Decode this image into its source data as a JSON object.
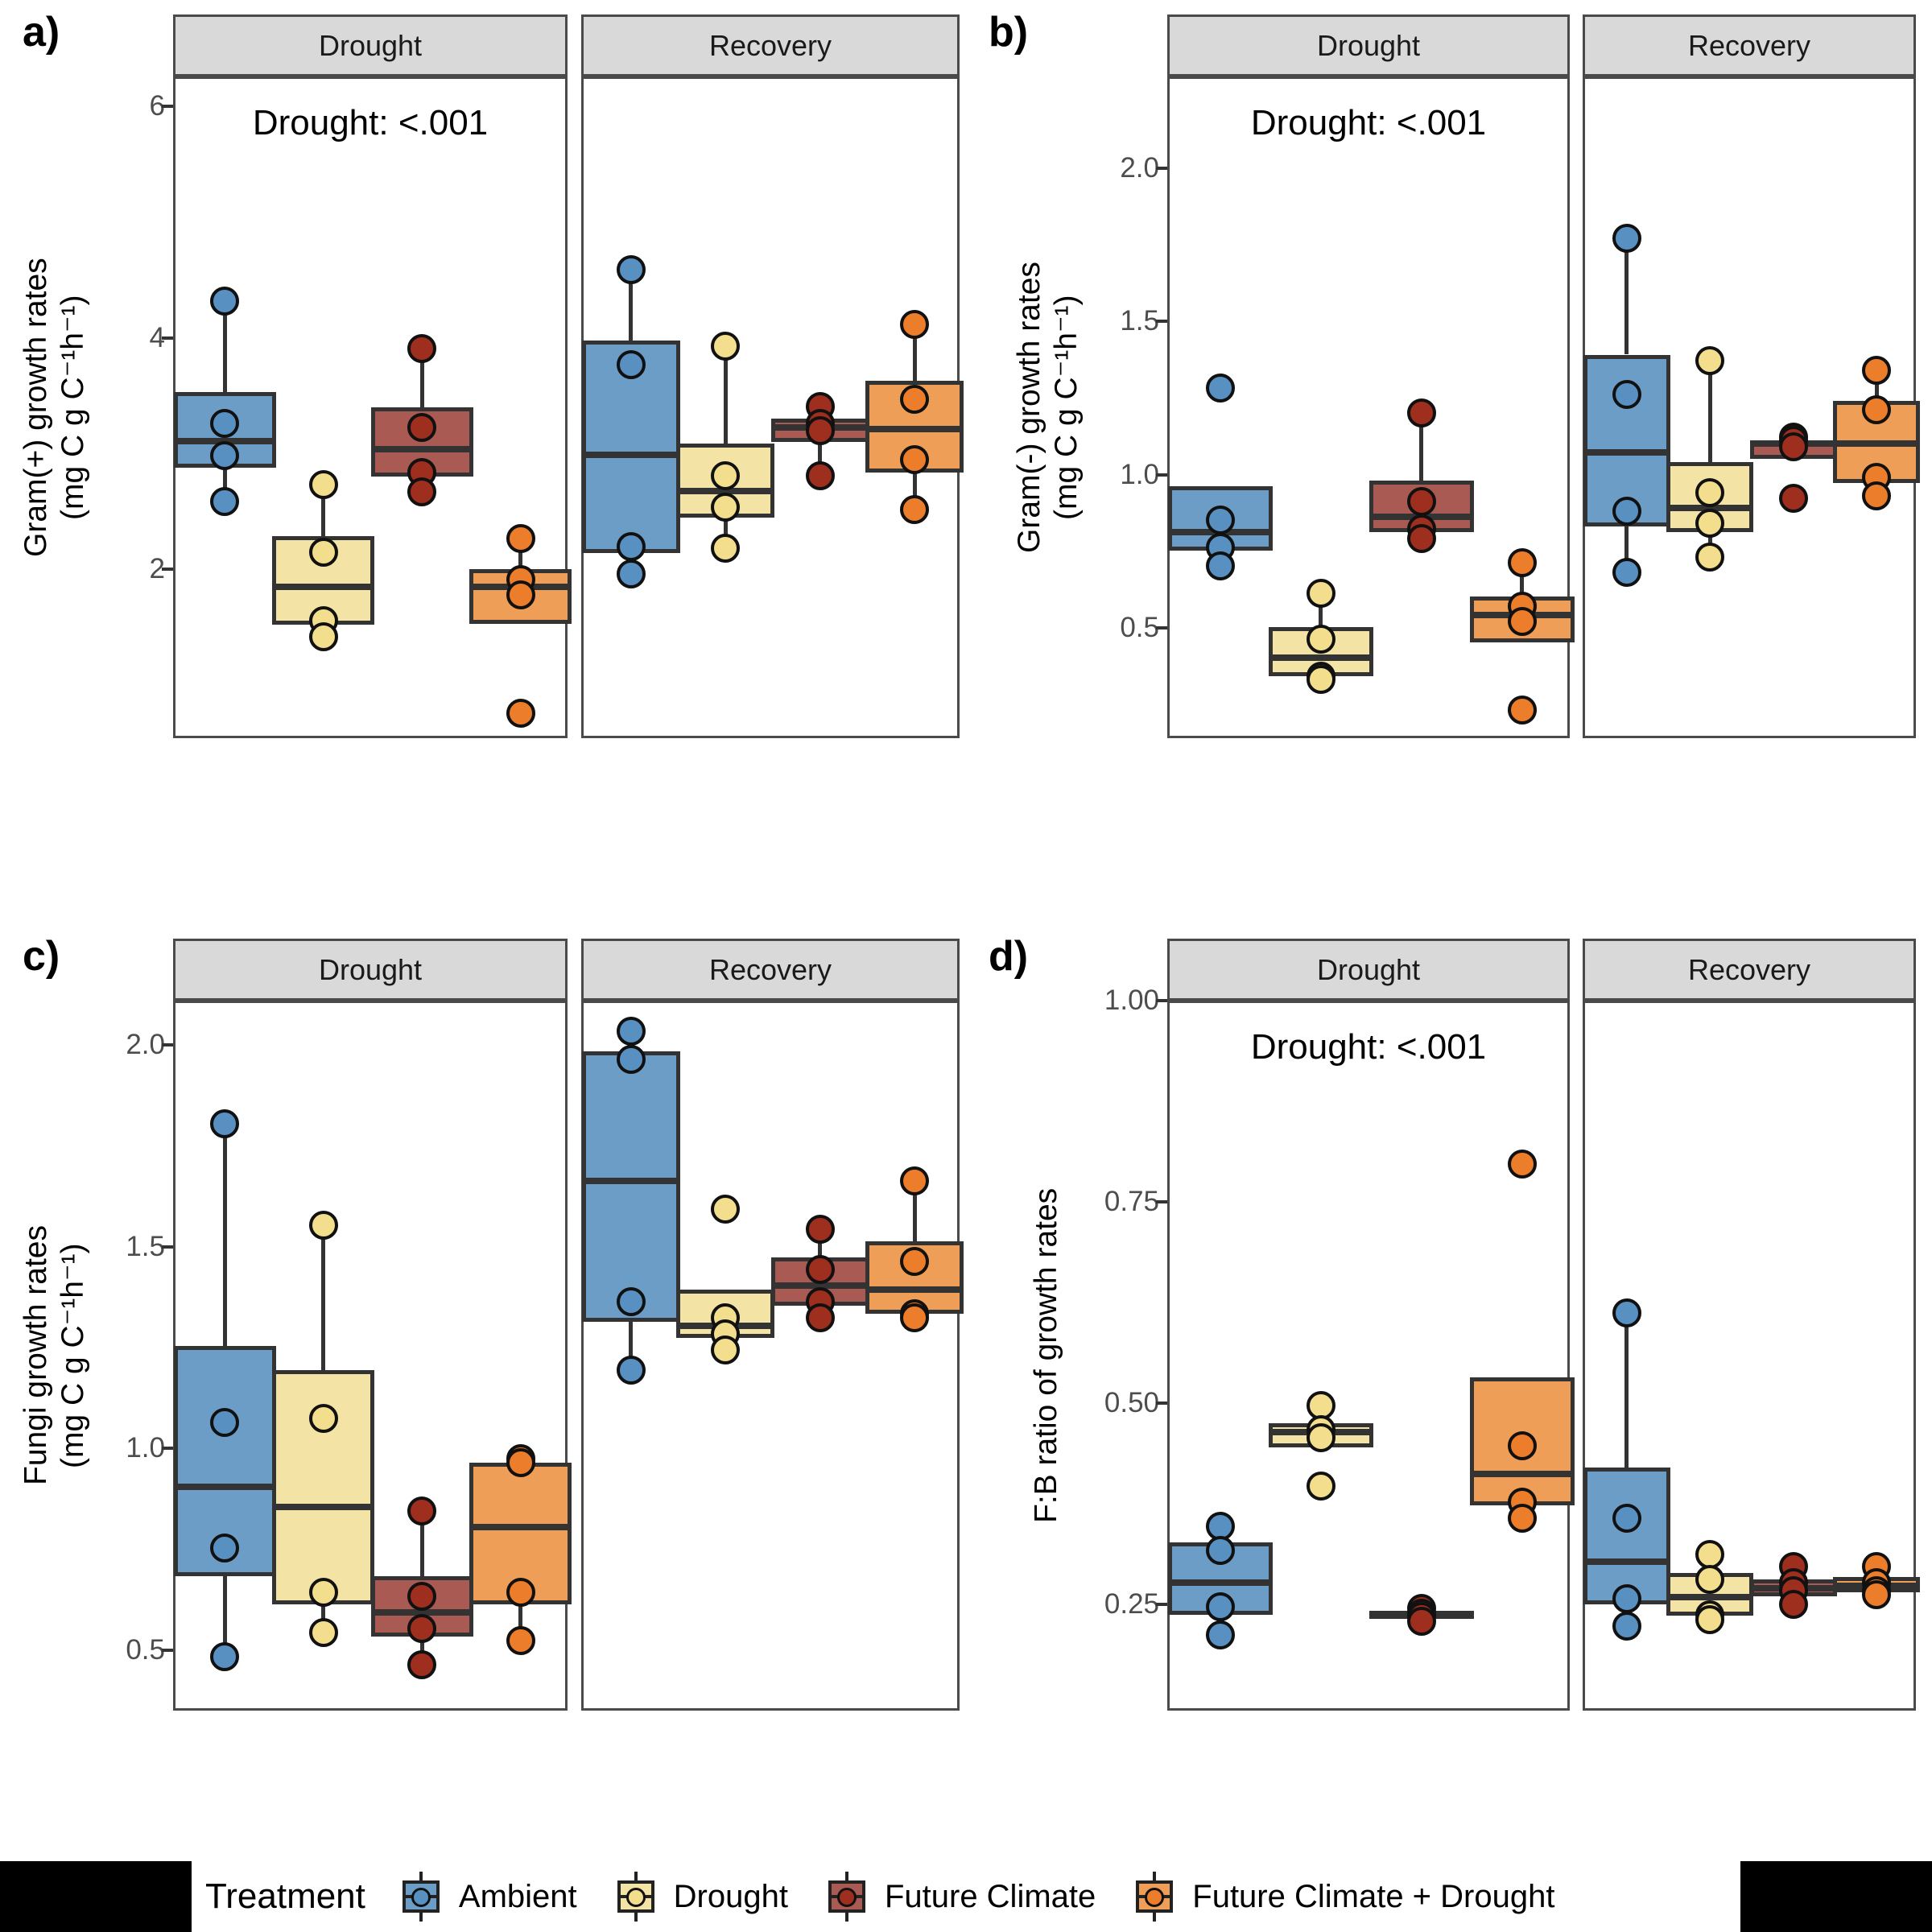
{
  "treatments": [
    {
      "name": "Ambient",
      "box_fill": "#6C9DC6",
      "point_fill": "#5890C2"
    },
    {
      "name": "Drought",
      "box_fill": "#F3E3A4",
      "point_fill": "#F2DE8D"
    },
    {
      "name": "Future Climate",
      "box_fill": "#A95A52",
      "point_fill": "#9E2E1E"
    },
    {
      "name": "Future Climate + Drought",
      "box_fill": "#EF9E58",
      "point_fill": "#EC7D2A"
    }
  ],
  "legend": {
    "title": "Treatment",
    "items": [
      "Ambient",
      "Drought",
      "Future Climate",
      "Future Climate + Drought"
    ]
  },
  "style": {
    "strip_bg": "#D9D9D9",
    "panel_border": "#4A4A4A",
    "box_stroke": "#333333",
    "tick_text": "#4D4D4D"
  },
  "chart_data": [
    {
      "id": "a",
      "label": "a)",
      "type": "boxplot",
      "ylabel_line1": "Gram(+) growth rates",
      "ylabel_line2": "(mg C g C⁻¹h⁻¹)",
      "ylim": [
        0.54,
        6.26
      ],
      "yticks": [
        {
          "v": 6,
          "label": "6"
        },
        {
          "v": 4,
          "label": "4"
        },
        {
          "v": 2,
          "label": "2"
        }
      ],
      "annotation": "Drought: <.001",
      "facets": [
        {
          "label": "Drought",
          "groups": [
            {
              "treatment": 0,
              "q1": 2.9,
              "median": 3.13,
              "q3": 3.55,
              "wlo": 2.61,
              "whi": 4.34,
              "points": [
                4.34,
                3.28,
                3.0,
                2.61
              ]
            },
            {
              "treatment": 1,
              "q1": 1.54,
              "median": 1.87,
              "q3": 2.31,
              "wlo": 1.44,
              "whi": 2.75,
              "points": [
                2.75,
                2.17,
                1.58,
                1.44
              ]
            },
            {
              "treatment": 2,
              "q1": 2.82,
              "median": 3.06,
              "q3": 3.42,
              "wlo": 2.69,
              "whi": 3.93,
              "points": [
                3.93,
                3.25,
                2.86,
                2.69
              ]
            },
            {
              "treatment": 3,
              "q1": 1.55,
              "median": 1.87,
              "q3": 2.02,
              "wlo": 1.55,
              "whi": 2.29,
              "points": [
                2.29,
                1.93,
                1.8,
                0.78
              ]
            }
          ]
        },
        {
          "label": "Recovery",
          "groups": [
            {
              "treatment": 0,
              "q1": 2.16,
              "median": 3.01,
              "q3": 4.0,
              "wlo": 1.98,
              "whi": 4.61,
              "points": [
                4.61,
                3.79,
                2.22,
                1.98
              ]
            },
            {
              "treatment": 1,
              "q1": 2.47,
              "median": 2.7,
              "q3": 3.11,
              "wlo": 2.2,
              "whi": 3.95,
              "points": [
                3.95,
                2.83,
                2.56,
                2.2
              ]
            },
            {
              "treatment": 2,
              "q1": 3.12,
              "median": 3.25,
              "q3": 3.32,
              "wlo": 2.83,
              "whi": 3.43,
              "points": [
                3.43,
                3.28,
                3.22,
                2.83
              ]
            },
            {
              "treatment": 3,
              "q1": 2.86,
              "median": 3.23,
              "q3": 3.65,
              "wlo": 2.54,
              "whi": 4.14,
              "points": [
                4.14,
                3.49,
                2.97,
                2.54
              ]
            }
          ]
        }
      ]
    },
    {
      "id": "b",
      "label": "b)",
      "type": "boxplot",
      "ylabel_line1": "Gram(-) growth rates",
      "ylabel_line2": "(mg C g C⁻¹h⁻¹)",
      "ylim": [
        0.14,
        2.3
      ],
      "yticks": [
        {
          "v": 2.0,
          "label": "2.0"
        },
        {
          "v": 1.5,
          "label": "1.5"
        },
        {
          "v": 1.0,
          "label": "1.0"
        },
        {
          "v": 0.5,
          "label": "0.5"
        }
      ],
      "annotation": "Drought: <.001",
      "facets": [
        {
          "label": "Drought",
          "groups": [
            {
              "treatment": 0,
              "q1": 0.76,
              "median": 0.82,
              "q3": 0.97,
              "wlo": 0.71,
              "whi": 0.97,
              "points": [
                1.29,
                0.86,
                0.77,
                0.71
              ]
            },
            {
              "treatment": 1,
              "q1": 0.35,
              "median": 0.41,
              "q3": 0.51,
              "wlo": 0.34,
              "whi": 0.62,
              "points": [
                0.62,
                0.47,
                0.35,
                0.34
              ]
            },
            {
              "treatment": 2,
              "q1": 0.82,
              "median": 0.87,
              "q3": 0.99,
              "wlo": 0.8,
              "whi": 1.21,
              "points": [
                1.21,
                0.92,
                0.83,
                0.8
              ]
            },
            {
              "treatment": 3,
              "q1": 0.46,
              "median": 0.55,
              "q3": 0.61,
              "wlo": 0.46,
              "whi": 0.72,
              "points": [
                0.72,
                0.58,
                0.53,
                0.24
              ]
            }
          ]
        },
        {
          "label": "Recovery",
          "groups": [
            {
              "treatment": 0,
              "q1": 0.84,
              "median": 1.08,
              "q3": 1.4,
              "wlo": 0.69,
              "whi": 1.78,
              "points": [
                1.78,
                1.27,
                0.89,
                0.69
              ]
            },
            {
              "treatment": 1,
              "q1": 0.82,
              "median": 0.9,
              "q3": 1.05,
              "wlo": 0.74,
              "whi": 1.38,
              "points": [
                1.38,
                0.95,
                0.85,
                0.74
              ]
            },
            {
              "treatment": 2,
              "q1": 1.06,
              "median": 1.11,
              "q3": 1.12,
              "wlo": 1.06,
              "whi": 1.13,
              "points": [
                1.13,
                1.12,
                1.1,
                0.93
              ]
            },
            {
              "treatment": 3,
              "q1": 0.98,
              "median": 1.11,
              "q3": 1.25,
              "wlo": 0.94,
              "whi": 1.35,
              "points": [
                1.35,
                1.22,
                1.0,
                0.94
              ]
            }
          ]
        }
      ]
    },
    {
      "id": "c",
      "label": "c)",
      "type": "boxplot",
      "ylabel_line1": "Fungi growth rates",
      "ylabel_line2": "(mg C g C⁻¹h⁻¹)",
      "ylim": [
        0.35,
        2.11
      ],
      "yticks": [
        {
          "v": 2.0,
          "label": "2.0"
        },
        {
          "v": 1.5,
          "label": "1.5"
        },
        {
          "v": 1.0,
          "label": "1.0"
        },
        {
          "v": 0.5,
          "label": "0.5"
        }
      ],
      "annotation": null,
      "facets": [
        {
          "label": "Drought",
          "groups": [
            {
              "treatment": 0,
              "q1": 0.69,
              "median": 0.91,
              "q3": 1.26,
              "wlo": 0.49,
              "whi": 1.81,
              "points": [
                1.81,
                1.07,
                0.76,
                0.49
              ]
            },
            {
              "treatment": 1,
              "q1": 0.62,
              "median": 0.86,
              "q3": 1.2,
              "wlo": 0.55,
              "whi": 1.56,
              "points": [
                1.56,
                1.08,
                0.65,
                0.55
              ]
            },
            {
              "treatment": 2,
              "q1": 0.54,
              "median": 0.6,
              "q3": 0.69,
              "wlo": 0.47,
              "whi": 0.85,
              "points": [
                0.85,
                0.64,
                0.56,
                0.47
              ]
            },
            {
              "treatment": 3,
              "q1": 0.62,
              "median": 0.81,
              "q3": 0.97,
              "wlo": 0.53,
              "whi": 0.97,
              "points": [
                0.98,
                0.97,
                0.65,
                0.53
              ]
            }
          ]
        },
        {
          "label": "Recovery",
          "groups": [
            {
              "treatment": 0,
              "q1": 1.32,
              "median": 1.67,
              "q3": 1.99,
              "wlo": 1.2,
              "whi": 2.04,
              "points": [
                2.04,
                1.97,
                1.37,
                1.2
              ]
            },
            {
              "treatment": 1,
              "q1": 1.28,
              "median": 1.31,
              "q3": 1.4,
              "wlo": 1.25,
              "whi": 1.4,
              "points": [
                1.6,
                1.33,
                1.29,
                1.25
              ]
            },
            {
              "treatment": 2,
              "q1": 1.36,
              "median": 1.41,
              "q3": 1.48,
              "wlo": 1.33,
              "whi": 1.55,
              "points": [
                1.55,
                1.45,
                1.37,
                1.33
              ]
            },
            {
              "treatment": 3,
              "q1": 1.34,
              "median": 1.4,
              "q3": 1.52,
              "wlo": 1.33,
              "whi": 1.67,
              "points": [
                1.67,
                1.47,
                1.34,
                1.33
              ]
            }
          ]
        }
      ]
    },
    {
      "id": "d",
      "label": "d)",
      "type": "boxplot",
      "ylabel_line1": "F:B ratio of growth rates",
      "ylabel_line2": null,
      "ylim": [
        0.118,
        1.0
      ],
      "yticks": [
        {
          "v": 1.0,
          "label": "1.00"
        },
        {
          "v": 0.75,
          "label": "0.75"
        },
        {
          "v": 0.5,
          "label": "0.50"
        },
        {
          "v": 0.25,
          "label": "0.25"
        }
      ],
      "annotation": "Drought: <.001",
      "facets": [
        {
          "label": "Drought",
          "groups": [
            {
              "treatment": 0,
              "q1": 0.24,
              "median": 0.28,
              "q3": 0.33,
              "wlo": 0.215,
              "whi": 0.35,
              "points": [
                0.35,
                0.32,
                0.25,
                0.215
              ]
            },
            {
              "treatment": 1,
              "q1": 0.448,
              "median": 0.467,
              "q3": 0.478,
              "wlo": 0.448,
              "whi": 0.5,
              "points": [
                0.5,
                0.47,
                0.46,
                0.4
              ]
            },
            {
              "treatment": 2,
              "q1": 0.237,
              "median": 0.241,
              "q3": 0.245,
              "wlo": 0.232,
              "whi": 0.248,
              "points": [
                0.248,
                0.242,
                0.238,
                0.232
              ]
            },
            {
              "treatment": 3,
              "q1": 0.376,
              "median": 0.415,
              "q3": 0.535,
              "wlo": 0.376,
              "whi": 0.535,
              "points": [
                0.8,
                0.45,
                0.38,
                0.36
              ]
            }
          ]
        },
        {
          "label": "Recovery",
          "groups": [
            {
              "treatment": 0,
              "q1": 0.253,
              "median": 0.306,
              "q3": 0.423,
              "wlo": 0.226,
              "whi": 0.615,
              "points": [
                0.615,
                0.36,
                0.26,
                0.226
              ]
            },
            {
              "treatment": 1,
              "q1": 0.239,
              "median": 0.262,
              "q3": 0.292,
              "wlo": 0.234,
              "whi": 0.315,
              "points": [
                0.315,
                0.284,
                0.24,
                0.234
              ]
            },
            {
              "treatment": 2,
              "q1": 0.263,
              "median": 0.273,
              "q3": 0.284,
              "wlo": 0.253,
              "whi": 0.3,
              "points": [
                0.3,
                0.28,
                0.27,
                0.253
              ]
            },
            {
              "treatment": 3,
              "q1": 0.268,
              "median": 0.276,
              "q3": 0.287,
              "wlo": 0.265,
              "whi": 0.3,
              "points": [
                0.3,
                0.28,
                0.27,
                0.265
              ]
            }
          ]
        }
      ]
    }
  ]
}
